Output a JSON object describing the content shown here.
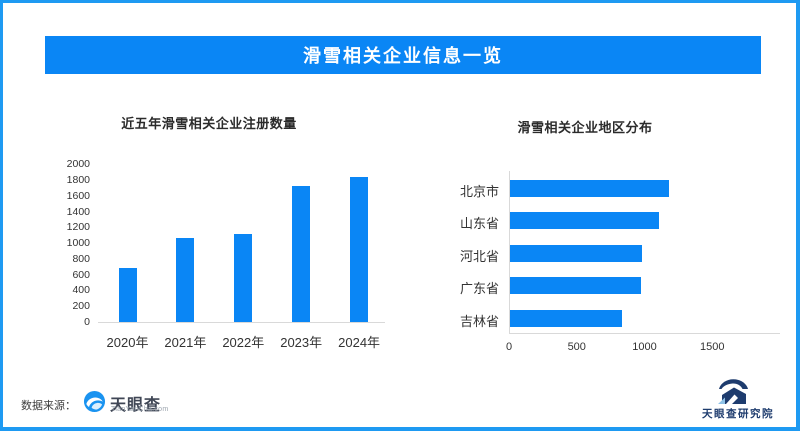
{
  "banner": {
    "title": "滑雪相关企业信息一览"
  },
  "page": {
    "colors": {
      "accent_blue": "#0a86f5",
      "border_blue": "#1e9af2",
      "axis_gray": "#d9d9d9",
      "text_dark": "#333333",
      "logo_navy": "#1e3c6e"
    }
  },
  "chart_data": [
    {
      "type": "bar",
      "orientation": "vertical",
      "title": "近五年滑雪相关企业注册数量",
      "categories": [
        "2020年",
        "2021年",
        "2022年",
        "2023年",
        "2024年"
      ],
      "values": [
        690,
        1060,
        1120,
        1730,
        1840
      ],
      "xlabel": "",
      "ylabel": "",
      "ylim": [
        0,
        2000
      ],
      "ytick_step": 200,
      "grid": false,
      "legend": false,
      "bar_color": "#0a86f5"
    },
    {
      "type": "bar",
      "orientation": "horizontal",
      "title": "滑雪相关企业地区分布",
      "categories": [
        "北京市",
        "山东省",
        "河北省",
        "广东省",
        "吉林省"
      ],
      "values": [
        1170,
        1100,
        975,
        965,
        830
      ],
      "xlabel": "",
      "ylabel": "",
      "xlim": [
        0,
        2000
      ],
      "xticks": [
        0,
        500,
        1000,
        1500
      ],
      "grid": false,
      "legend": false,
      "bar_color": "#0a86f5"
    }
  ],
  "footer": {
    "source_label": "数据来源：",
    "tianyancha_name": "天眼查",
    "tianyancha_domain": "TianYanCha.com",
    "research_name": "天眼查研究院"
  }
}
